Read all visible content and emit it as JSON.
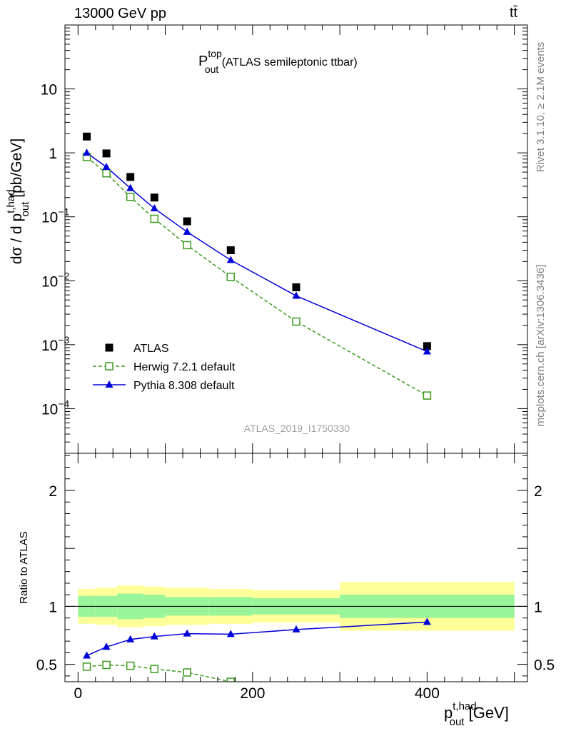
{
  "header": {
    "energy_label": "13000 GeV pp",
    "process_label": "tt̄"
  },
  "side_labels": {
    "rivet": "Rivet 3.1.10, ≥ 2.1M events",
    "source": "mcplots.cern.ch [arXiv:1306.3436]"
  },
  "chart_data": [
    {
      "type": "scatter",
      "panel": "main",
      "title_main": "P",
      "title_sup": "top",
      "title_sub": "out",
      "title_rest": " (ATLAS semileptonic ttbar)",
      "ylabel": "dσ / d p_out^{t,had} [pb/GeV]",
      "ylabel_parts": {
        "a": "dσ / d p",
        "sup": "t,had",
        "sub": "out",
        "b": " [pb/GeV]"
      },
      "yscale": "log",
      "ylim": [
        2e-05,
        100
      ],
      "xlim": [
        -15,
        515
      ],
      "y_tick_labels": [
        {
          "value": 10,
          "mant": "10",
          "exp": ""
        },
        {
          "value": 1,
          "mant": "1",
          "exp": ""
        },
        {
          "value": 0.1,
          "mant": "10",
          "exp": "−1"
        },
        {
          "value": 0.01,
          "mant": "10",
          "exp": "−2"
        },
        {
          "value": 0.001,
          "mant": "10",
          "exp": "−3"
        },
        {
          "value": 0.0001,
          "mant": "10",
          "exp": "−4"
        }
      ],
      "watermark": "ATLAS_2019_I1750330",
      "legend_placement": "bottom-left",
      "series": [
        {
          "name": "ATLAS",
          "style": "data",
          "color": "#000000",
          "x": [
            10,
            32.5,
            60,
            87.5,
            125,
            175,
            250,
            400
          ],
          "y": [
            1.8,
            0.98,
            0.42,
            0.2,
            0.085,
            0.03,
            0.0079,
            0.00095
          ]
        },
        {
          "name": "Herwig 7.2.1 default",
          "style": "herwig",
          "color": "#3a9b1d",
          "x": [
            10,
            32.5,
            60,
            87.5,
            125,
            175,
            250,
            400
          ],
          "y": [
            0.86,
            0.48,
            0.205,
            0.093,
            0.036,
            0.0115,
            0.0023,
            0.00016
          ]
        },
        {
          "name": "Pythia 8.308 default",
          "style": "pythia",
          "color": "#0000d8",
          "x": [
            10,
            32.5,
            60,
            87.5,
            125,
            175,
            250,
            400
          ],
          "y": [
            1.0,
            0.6,
            0.28,
            0.135,
            0.058,
            0.021,
            0.0058,
            0.00078
          ]
        }
      ]
    },
    {
      "type": "scatter",
      "panel": "ratio",
      "ylabel": "Ratio to ATLAS",
      "ylim": [
        0.35,
        2.32
      ],
      "xlim": [
        -15,
        515
      ],
      "y_tick_labels": [
        {
          "value": 2,
          "label": "2"
        },
        {
          "value": 1,
          "label": "1"
        },
        {
          "value": 0.5,
          "label": "0.5"
        }
      ],
      "x_tick_labels": [
        {
          "value": 0,
          "label": "0"
        },
        {
          "value": 200,
          "label": "200"
        },
        {
          "value": 400,
          "label": "400"
        }
      ],
      "xlabel_parts": {
        "a": "p",
        "sup": "t,had",
        "sub": "out",
        "b": " [GeV]"
      },
      "bands": [
        {
          "x0": 0,
          "x1": 20,
          "yellow": [
            0.85,
            1.15
          ],
          "green": [
            0.91,
            1.09
          ]
        },
        {
          "x0": 20,
          "x1": 45,
          "yellow": [
            0.84,
            1.16
          ],
          "green": [
            0.91,
            1.09
          ]
        },
        {
          "x0": 45,
          "x1": 75,
          "yellow": [
            0.82,
            1.18
          ],
          "green": [
            0.89,
            1.11
          ]
        },
        {
          "x0": 75,
          "x1": 100,
          "yellow": [
            0.83,
            1.17
          ],
          "green": [
            0.9,
            1.1
          ]
        },
        {
          "x0": 100,
          "x1": 150,
          "yellow": [
            0.84,
            1.16
          ],
          "green": [
            0.92,
            1.08
          ]
        },
        {
          "x0": 150,
          "x1": 200,
          "yellow": [
            0.85,
            1.15
          ],
          "green": [
            0.92,
            1.08
          ]
        },
        {
          "x0": 200,
          "x1": 300,
          "yellow": [
            0.86,
            1.14
          ],
          "green": [
            0.93,
            1.07
          ]
        },
        {
          "x0": 300,
          "x1": 500,
          "yellow": [
            0.79,
            1.21
          ],
          "green": [
            0.9,
            1.1
          ]
        }
      ],
      "series": [
        {
          "name": "Herwig 7.2.1 default",
          "style": "herwig",
          "color": "#3a9b1d",
          "x": [
            10,
            32.5,
            60,
            87.5,
            125,
            175
          ],
          "y": [
            0.48,
            0.495,
            0.488,
            0.46,
            0.43,
            0.35
          ]
        },
        {
          "name": "Pythia 8.308 default",
          "style": "pythia",
          "color": "#0000d8",
          "x": [
            10,
            32.5,
            60,
            87.5,
            125,
            175,
            250,
            400
          ],
          "y": [
            0.575,
            0.65,
            0.715,
            0.74,
            0.765,
            0.76,
            0.8,
            0.865
          ],
          "err": [
            0,
            0,
            0,
            0,
            0,
            0,
            0,
            0.025
          ]
        }
      ]
    }
  ]
}
